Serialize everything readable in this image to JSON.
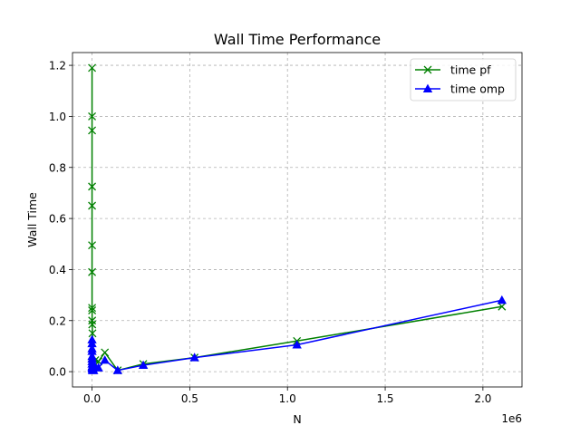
{
  "chart_data": {
    "type": "line",
    "title": "Wall Time Performance",
    "xlabel": "N",
    "ylabel": "Wall Time",
    "x_offset_label": "1e6",
    "xlim": [
      -100000,
      2200000
    ],
    "ylim": [
      -0.06,
      1.25
    ],
    "xticks": [
      0,
      500000,
      1000000,
      1500000,
      2000000
    ],
    "xtick_labels": [
      "0.0",
      "0.5",
      "1.0",
      "1.5",
      "2.0"
    ],
    "yticks": [
      0.0,
      0.2,
      0.4,
      0.6,
      0.8,
      1.0,
      1.2
    ],
    "ytick_labels": [
      "0.0",
      "0.2",
      "0.4",
      "0.6",
      "0.8",
      "1.0",
      "1.2"
    ],
    "grid": true,
    "legend_position": "top-right",
    "series": [
      {
        "name": "time pf",
        "color": "#008000",
        "marker": "x",
        "x": [
          1,
          2,
          4,
          8,
          16,
          32,
          64,
          128,
          256,
          512,
          1024,
          2048,
          4096,
          8192,
          16384,
          32768,
          65536,
          131072,
          262144,
          524288,
          1048576,
          2097152
        ],
        "y": [
          1.19,
          0.65,
          1.0,
          0.945,
          0.725,
          0.495,
          0.39,
          0.25,
          0.24,
          0.2,
          0.185,
          0.15,
          0.03,
          0.02,
          0.045,
          0.04,
          0.075,
          0.005,
          0.03,
          0.055,
          0.12,
          0.255
        ]
      },
      {
        "name": "time omp",
        "color": "#0000ff",
        "marker": "^",
        "x": [
          1,
          2,
          4,
          8,
          16,
          32,
          64,
          128,
          256,
          512,
          1024,
          2048,
          4096,
          8192,
          16384,
          32768,
          65536,
          131072,
          262144,
          524288,
          1048576,
          2097152
        ],
        "y": [
          0.125,
          0.11,
          0.09,
          0.08,
          0.06,
          0.05,
          0.04,
          0.03,
          0.02,
          0.015,
          0.01,
          0.005,
          0.01,
          0.005,
          0.02,
          0.015,
          0.045,
          0.005,
          0.025,
          0.055,
          0.105,
          0.28
        ]
      }
    ]
  }
}
